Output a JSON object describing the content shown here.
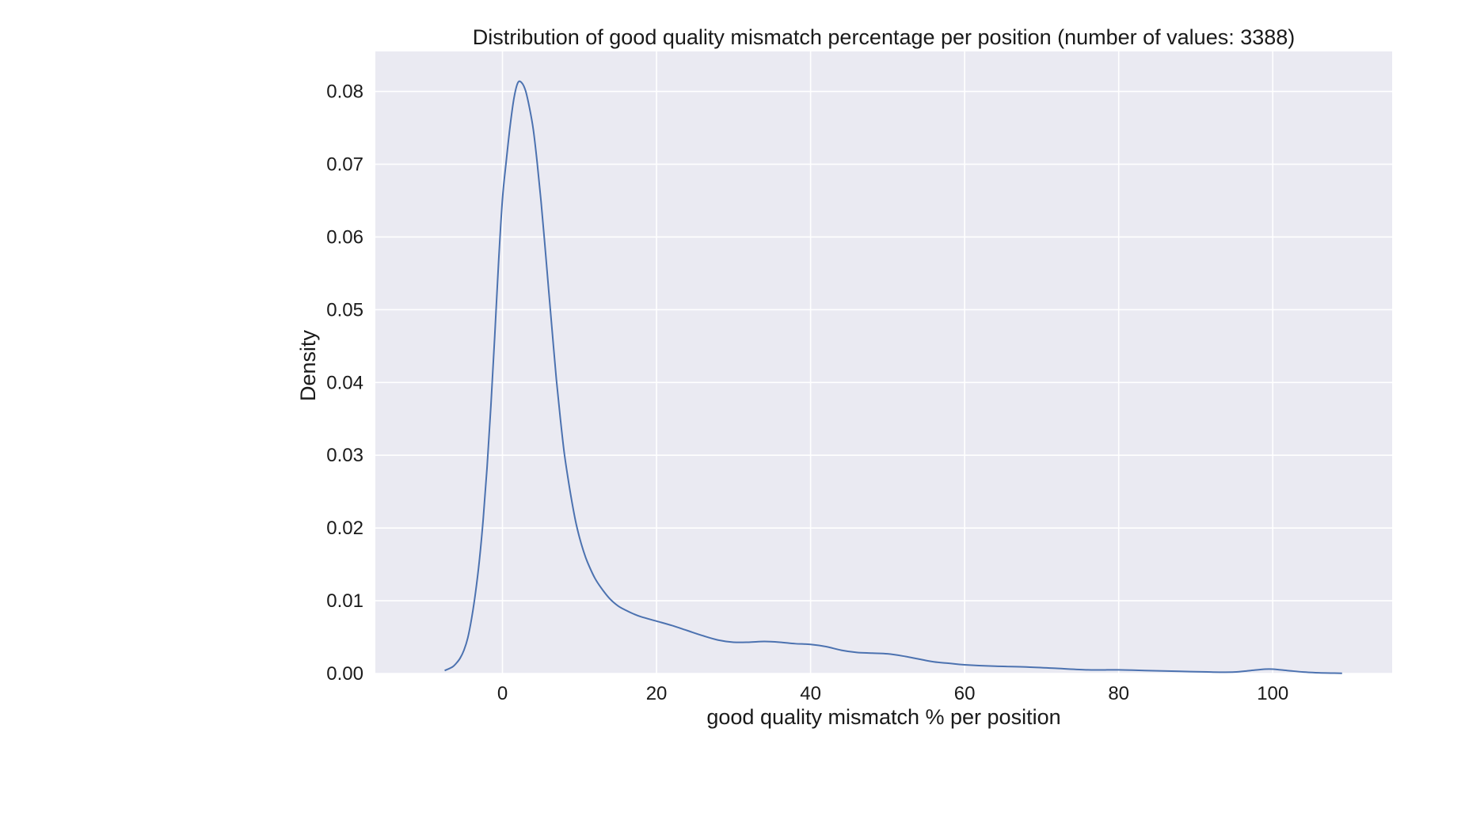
{
  "chart_data": {
    "type": "line",
    "title": "Distribution of good quality mismatch percentage per position (number of values: 3388)",
    "xlabel": "good quality mismatch % per position",
    "ylabel": "Density",
    "xlim": [
      -16.5,
      115.5
    ],
    "ylim": [
      0,
      0.0855
    ],
    "x_ticks": [
      0,
      20,
      40,
      60,
      80,
      100
    ],
    "x_tick_labels": [
      "0",
      "20",
      "40",
      "60",
      "80",
      "100"
    ],
    "y_ticks": [
      0,
      0.01,
      0.02,
      0.03,
      0.04,
      0.05,
      0.06,
      0.07,
      0.08
    ],
    "y_tick_labels": [
      "0.00",
      "0.01",
      "0.02",
      "0.03",
      "0.04",
      "0.05",
      "0.06",
      "0.07",
      "0.08"
    ],
    "grid": true,
    "legend": "none",
    "colors": {
      "background": "#eaeaf2",
      "grid": "#ffffff",
      "line": "#4c72b0"
    },
    "series": [
      {
        "x": [
          -7.5,
          -6.5,
          -6,
          -5.5,
          -5,
          -4.5,
          -4,
          -3.5,
          -3,
          -2.5,
          -2,
          -1.5,
          -1,
          -0.5,
          0,
          0.5,
          1,
          1.5,
          2,
          2.5,
          3,
          3.5,
          4,
          4.5,
          5,
          5.5,
          6,
          6.5,
          7,
          7.5,
          8,
          8.5,
          9,
          9.5,
          10,
          10.5,
          11,
          12,
          13,
          14,
          15,
          16,
          17,
          18,
          20,
          22,
          24,
          26,
          28,
          30,
          32,
          34,
          36,
          38,
          40,
          42,
          44,
          46,
          48,
          50,
          52,
          54,
          56,
          58,
          60,
          64,
          68,
          72,
          76,
          80,
          84,
          88,
          92,
          95,
          97,
          99,
          100,
          102,
          104,
          106,
          108,
          109
        ],
        "values": [
          0.0004,
          0.0009,
          0.0014,
          0.0021,
          0.0032,
          0.0049,
          0.0076,
          0.0111,
          0.0155,
          0.0212,
          0.0283,
          0.0368,
          0.0464,
          0.0566,
          0.0652,
          0.0705,
          0.0753,
          0.0791,
          0.0812,
          0.0812,
          0.0801,
          0.0778,
          0.0748,
          0.0703,
          0.065,
          0.059,
          0.0527,
          0.0465,
          0.0404,
          0.0352,
          0.0305,
          0.0269,
          0.0237,
          0.0209,
          0.0187,
          0.0169,
          0.0154,
          0.0131,
          0.0115,
          0.0102,
          0.0093,
          0.0087,
          0.0082,
          0.0078,
          0.0072,
          0.0066,
          0.0059,
          0.0052,
          0.0046,
          0.0043,
          0.0043,
          0.0044,
          0.0043,
          0.0041,
          0.004,
          0.0037,
          0.0032,
          0.0029,
          0.0028,
          0.0027,
          0.0024,
          0.002,
          0.0016,
          0.0014,
          0.0012,
          0.001,
          0.0009,
          0.0007,
          0.0005,
          0.0005,
          0.0004,
          0.0003,
          0.0002,
          0.0002,
          0.0004,
          0.0006,
          0.0006,
          0.0004,
          0.0002,
          0.0001,
          5e-05,
          3e-05
        ]
      }
    ]
  }
}
